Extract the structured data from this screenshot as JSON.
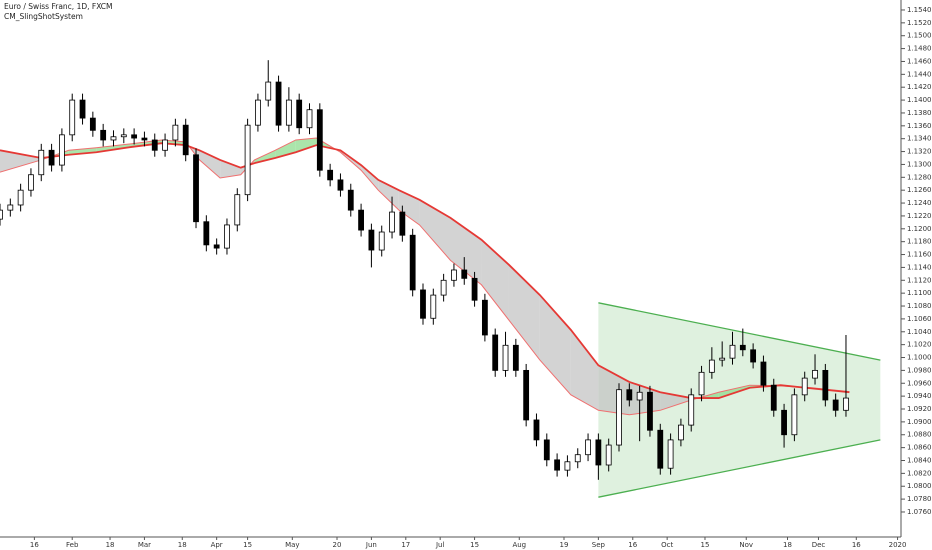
{
  "chart_data": {
    "type": "candlestick",
    "title": "Euro / Swiss Franc, 1D, FXCM",
    "subtitle": "CM_SlingShotSystem",
    "xlim": [
      0,
      262
    ],
    "ylim": [
      1.0732,
      1.15555
    ],
    "xticks": [
      {
        "value": 10,
        "label": "16"
      },
      {
        "value": 21,
        "label": "Feb"
      },
      {
        "value": 32,
        "label": "18"
      },
      {
        "value": 42,
        "label": "Mar"
      },
      {
        "value": 53,
        "label": "18"
      },
      {
        "value": 63,
        "label": "Apr"
      },
      {
        "value": 72,
        "label": "15"
      },
      {
        "value": 85,
        "label": "May"
      },
      {
        "value": 98,
        "label": "20"
      },
      {
        "value": 108,
        "label": "Jun"
      },
      {
        "value": 118,
        "label": "17"
      },
      {
        "value": 128,
        "label": "Jul"
      },
      {
        "value": 138,
        "label": "15"
      },
      {
        "value": 151,
        "label": "Aug"
      },
      {
        "value": 164,
        "label": "19"
      },
      {
        "value": 174,
        "label": "Sep"
      },
      {
        "value": 184,
        "label": "16"
      },
      {
        "value": 194,
        "label": "Oct"
      },
      {
        "value": 205,
        "label": "15"
      },
      {
        "value": 217,
        "label": "Nov"
      },
      {
        "value": 229,
        "label": "18"
      },
      {
        "value": 238,
        "label": "Dec"
      },
      {
        "value": 249,
        "label": "16"
      },
      {
        "value": 261,
        "label": "2020"
      }
    ],
    "yticks": [
      {
        "value": 1.076,
        "label": "1.07600"
      },
      {
        "value": 1.078,
        "label": "1.07800"
      },
      {
        "value": 1.08,
        "label": "1.08000"
      },
      {
        "value": 1.082,
        "label": "1.08200"
      },
      {
        "value": 1.084,
        "label": "1.08400"
      },
      {
        "value": 1.086,
        "label": "1.08600"
      },
      {
        "value": 1.088,
        "label": "1.08800"
      },
      {
        "value": 1.09,
        "label": "1.09000"
      },
      {
        "value": 1.092,
        "label": "1.09200"
      },
      {
        "value": 1.094,
        "label": "1.09400"
      },
      {
        "value": 1.096,
        "label": "1.09600"
      },
      {
        "value": 1.098,
        "label": "1.09800"
      },
      {
        "value": 1.1,
        "label": "1.10000"
      },
      {
        "value": 1.102,
        "label": "1.10200"
      },
      {
        "value": 1.104,
        "label": "1.10400"
      },
      {
        "value": 1.106,
        "label": "1.10600"
      },
      {
        "value": 1.108,
        "label": "1.10800"
      },
      {
        "value": 1.11,
        "label": "1.11000"
      },
      {
        "value": 1.112,
        "label": "1.11200"
      },
      {
        "value": 1.114,
        "label": "1.11400"
      },
      {
        "value": 1.116,
        "label": "1.11600"
      },
      {
        "value": 1.118,
        "label": "1.11800"
      },
      {
        "value": 1.12,
        "label": "1.12000"
      },
      {
        "value": 1.122,
        "label": "1.12200"
      },
      {
        "value": 1.124,
        "label": "1.12400"
      },
      {
        "value": 1.126,
        "label": "1.12600"
      },
      {
        "value": 1.128,
        "label": "1.12800"
      },
      {
        "value": 1.13,
        "label": "1.13000"
      },
      {
        "value": 1.132,
        "label": "1.13200"
      },
      {
        "value": 1.134,
        "label": "1.13400"
      },
      {
        "value": 1.136,
        "label": "1.13600"
      },
      {
        "value": 1.138,
        "label": "1.13800"
      },
      {
        "value": 1.14,
        "label": "1.14000"
      },
      {
        "value": 1.142,
        "label": "1.14200"
      },
      {
        "value": 1.144,
        "label": "1.14400"
      },
      {
        "value": 1.146,
        "label": "1.14600"
      },
      {
        "value": 1.148,
        "label": "1.14800"
      },
      {
        "value": 1.15,
        "label": "1.15000"
      },
      {
        "value": 1.152,
        "label": "1.15200"
      },
      {
        "value": 1.154,
        "label": "1.15400"
      }
    ],
    "up_color": "#ffffff",
    "down_color": "#000000",
    "x": [
      0,
      3,
      6,
      9,
      12,
      15,
      18,
      21,
      24,
      27,
      30,
      33,
      36,
      39,
      42,
      45,
      48,
      51,
      54,
      57,
      60,
      63,
      66,
      69,
      72,
      75,
      78,
      81,
      84,
      87,
      90,
      93,
      96,
      99,
      102,
      105,
      108,
      111,
      114,
      117,
      120,
      123,
      126,
      129,
      132,
      135,
      138,
      141,
      144,
      147,
      150,
      153,
      156,
      159,
      162,
      165,
      168,
      171,
      174,
      177,
      180,
      183,
      186,
      189,
      192,
      195,
      198,
      201,
      204,
      207,
      210,
      213,
      216,
      219,
      222,
      225,
      228,
      231,
      234,
      237,
      240,
      243,
      246
    ],
    "values": [
      [
        1.1215,
        1.1239,
        1.1205,
        1.1229
      ],
      [
        1.1229,
        1.1247,
        1.1219,
        1.1237
      ],
      [
        1.1237,
        1.127,
        1.1227,
        1.126
      ],
      [
        1.126,
        1.1294,
        1.125,
        1.1284
      ],
      [
        1.1284,
        1.1332,
        1.1274,
        1.1322
      ],
      [
        1.1322,
        1.1332,
        1.1289,
        1.1299
      ],
      [
        1.1299,
        1.1356,
        1.1289,
        1.1346
      ],
      [
        1.1346,
        1.141,
        1.1336,
        1.14
      ],
      [
        1.14,
        1.141,
        1.1362,
        1.1372
      ],
      [
        1.1372,
        1.1382,
        1.1343,
        1.1353
      ],
      [
        1.1353,
        1.1363,
        1.1328,
        1.1338
      ],
      [
        1.1338,
        1.1353,
        1.1328,
        1.1343
      ],
      [
        1.1343,
        1.1356,
        1.1333,
        1.1346
      ],
      [
        1.1346,
        1.1356,
        1.1331,
        1.1341
      ],
      [
        1.1341,
        1.1351,
        1.1328,
        1.1338
      ],
      [
        1.1338,
        1.1348,
        1.1312,
        1.1322
      ],
      [
        1.1322,
        1.1348,
        1.1312,
        1.1338
      ],
      [
        1.1338,
        1.1371,
        1.1328,
        1.1361
      ],
      [
        1.1361,
        1.1371,
        1.1305,
        1.1315
      ],
      [
        1.1315,
        1.1325,
        1.1201,
        1.1211
      ],
      [
        1.1211,
        1.1221,
        1.1165,
        1.1175
      ],
      [
        1.1175,
        1.1185,
        1.116,
        1.117
      ],
      [
        1.117,
        1.1216,
        1.116,
        1.1206
      ],
      [
        1.1206,
        1.1263,
        1.1196,
        1.1253
      ],
      [
        1.1253,
        1.1371,
        1.1243,
        1.1361
      ],
      [
        1.1361,
        1.141,
        1.1351,
        1.14
      ],
      [
        1.14,
        1.1462,
        1.139,
        1.1428
      ],
      [
        1.1428,
        1.1438,
        1.1351,
        1.1361
      ],
      [
        1.1361,
        1.142,
        1.1351,
        1.14
      ],
      [
        1.14,
        1.141,
        1.1347,
        1.1357
      ],
      [
        1.1357,
        1.1395,
        1.1347,
        1.1385
      ],
      [
        1.1385,
        1.1395,
        1.1281,
        1.1291
      ],
      [
        1.1291,
        1.1301,
        1.1266,
        1.1276
      ],
      [
        1.1276,
        1.1286,
        1.125,
        1.126
      ],
      [
        1.126,
        1.127,
        1.1219,
        1.1229
      ],
      [
        1.1229,
        1.1239,
        1.1188,
        1.1198
      ],
      [
        1.1198,
        1.1208,
        1.114,
        1.1167
      ],
      [
        1.1167,
        1.1205,
        1.1157,
        1.1195
      ],
      [
        1.1195,
        1.125,
        1.1185,
        1.1226
      ],
      [
        1.1226,
        1.1236,
        1.118,
        1.119
      ],
      [
        1.119,
        1.12,
        1.1095,
        1.1105
      ],
      [
        1.1105,
        1.1115,
        1.1051,
        1.1061
      ],
      [
        1.1061,
        1.1107,
        1.1051,
        1.1097
      ],
      [
        1.1097,
        1.113,
        1.1087,
        1.112
      ],
      [
        1.112,
        1.1146,
        1.111,
        1.1136
      ],
      [
        1.1136,
        1.1156,
        1.1113,
        1.1123
      ],
      [
        1.1123,
        1.1133,
        1.1079,
        1.1089
      ],
      [
        1.1089,
        1.1099,
        1.1025,
        1.1035
      ],
      [
        1.1035,
        1.1045,
        1.097,
        1.098
      ],
      [
        1.098,
        1.104,
        1.097,
        1.1019
      ],
      [
        1.1019,
        1.1029,
        1.097,
        1.098
      ],
      [
        1.098,
        1.099,
        1.0893,
        1.0903
      ],
      [
        1.0903,
        1.0913,
        1.0862,
        1.0872
      ],
      [
        1.0872,
        1.0882,
        1.0831,
        1.0841
      ],
      [
        1.0841,
        1.0851,
        1.0815,
        1.0825
      ],
      [
        1.0825,
        1.0848,
        1.0815,
        1.0838
      ],
      [
        1.0838,
        1.0859,
        1.0828,
        1.0849
      ],
      [
        1.0849,
        1.0882,
        1.0839,
        1.0872
      ],
      [
        1.0872,
        1.0882,
        1.081,
        1.0833
      ],
      [
        1.0833,
        1.0874,
        1.0823,
        1.0864
      ],
      [
        1.0864,
        1.096,
        1.0854,
        1.095
      ],
      [
        1.095,
        1.096,
        1.0924,
        1.0934
      ],
      [
        1.0934,
        1.0956,
        1.087,
        1.0946
      ],
      [
        1.0946,
        1.0956,
        1.0877,
        1.0887
      ],
      [
        1.0887,
        1.0897,
        1.0818,
        1.0828
      ],
      [
        1.0828,
        1.0882,
        1.0818,
        1.0872
      ],
      [
        1.0872,
        1.0905,
        1.0862,
        1.0895
      ],
      [
        1.0895,
        1.0952,
        1.0885,
        1.0942
      ],
      [
        1.0942,
        1.0987,
        1.0932,
        1.0977
      ],
      [
        1.0977,
        1.1016,
        1.0967,
        1.0996
      ],
      [
        1.0996,
        1.1025,
        1.0986,
        1.0999
      ],
      [
        1.0999,
        1.104,
        1.0989,
        1.1019
      ],
      [
        1.1019,
        1.1045,
        1.1002,
        1.1012
      ],
      [
        1.1012,
        1.1022,
        1.0983,
        1.0993
      ],
      [
        1.0993,
        1.1003,
        1.0947,
        1.0957
      ],
      [
        1.0957,
        1.0967,
        1.0908,
        1.0918
      ],
      [
        1.0918,
        1.0928,
        1.086,
        1.088
      ],
      [
        1.088,
        1.0952,
        1.087,
        1.0942
      ],
      [
        1.0942,
        1.0978,
        1.0932,
        1.0968
      ],
      [
        1.0968,
        1.1005,
        1.0958,
        1.098
      ],
      [
        1.098,
        1.099,
        1.0924,
        1.0934
      ],
      [
        1.0934,
        1.0944,
        1.0908,
        1.0918
      ],
      [
        1.0918,
        1.1035,
        1.0908,
        1.0937
      ]
    ],
    "ma": {
      "x": [
        0,
        12,
        20,
        28,
        38,
        47,
        54,
        58,
        64,
        70,
        74,
        80,
        86,
        92,
        99,
        105,
        110,
        116,
        122,
        131,
        140,
        148,
        157,
        166,
        174,
        183,
        192,
        201,
        209,
        218,
        227,
        236,
        247
      ],
      "fast": [
        1.1288,
        1.1307,
        1.1322,
        1.1326,
        1.1332,
        1.1338,
        1.1335,
        1.1307,
        1.1279,
        1.1284,
        1.1307,
        1.1322,
        1.1338,
        1.1341,
        1.1319,
        1.1291,
        1.126,
        1.1229,
        1.1206,
        1.1151,
        1.1113,
        1.1058,
        1.0996,
        1.0942,
        1.0918,
        1.0911,
        1.0918,
        1.0934,
        1.0946,
        1.0957,
        1.0956,
        1.0953,
        1.0947
      ],
      "slow": [
        1.1322,
        1.131,
        1.1315,
        1.1319,
        1.1327,
        1.1333,
        1.133,
        1.1322,
        1.1307,
        1.1295,
        1.1302,
        1.131,
        1.1319,
        1.133,
        1.1322,
        1.1299,
        1.1276,
        1.126,
        1.1245,
        1.1217,
        1.1183,
        1.1144,
        1.1097,
        1.1043,
        1.0988,
        1.0962,
        1.0946,
        1.0937,
        1.0937,
        1.0953,
        1.0957,
        1.0952,
        1.0946
      ],
      "fast_color": "#ef7070",
      "slow_color": "#e53935",
      "up_fill": "#8fdc8f",
      "down_fill": "#c4c4c4"
    },
    "triangle": {
      "x": [
        174,
        256
      ],
      "upper": [
        1.1085,
        1.0996
      ],
      "lower": [
        1.0783,
        1.0872
      ],
      "color": "#4caf50"
    }
  }
}
